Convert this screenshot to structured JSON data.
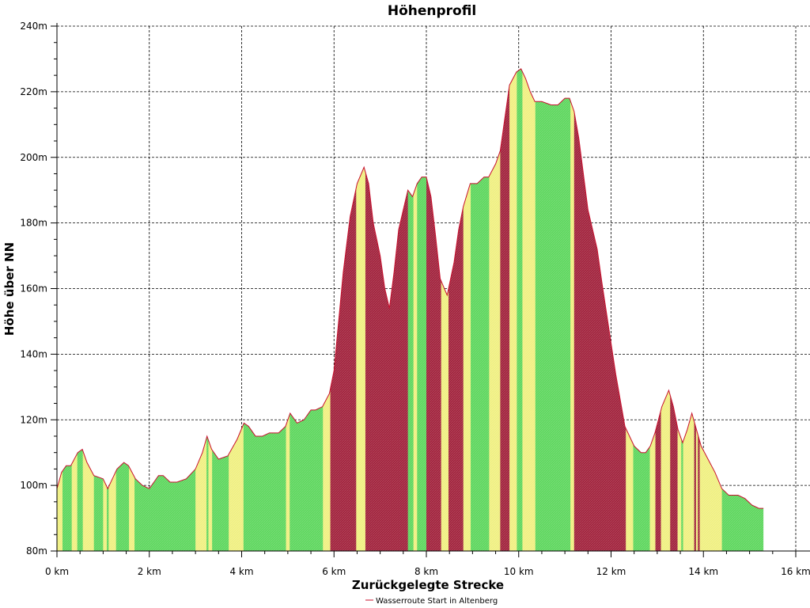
{
  "chart_data": {
    "type": "area",
    "title": "Höhenprofil",
    "xlabel": "Zurückgelegte Strecke",
    "ylabel": "Höhe über NN",
    "xlim": [
      0,
      16
    ],
    "ylim": [
      80,
      240
    ],
    "grid": true,
    "legend_position": "bottom-center",
    "x_ticks": [
      0,
      2,
      4,
      6,
      8,
      10,
      12,
      14,
      16
    ],
    "x_tick_labels": [
      "0 km",
      "2 km",
      "4 km",
      "6 km",
      "8 km",
      "10 km",
      "12 km",
      "14 km",
      "16 km"
    ],
    "y_ticks": [
      80,
      100,
      120,
      140,
      160,
      180,
      200,
      220,
      240
    ],
    "y_tick_labels": [
      "80m",
      "100m",
      "120m",
      "140m",
      "160m",
      "180m",
      "200m",
      "220m",
      "240m"
    ],
    "line_color": "#c8102e",
    "gradient_colors": {
      "flat": "#5cd65c",
      "moderate": "#f0f080",
      "steep": "#a0203a"
    },
    "series": [
      {
        "name": "Wasserroute Start in Altenberg",
        "x": [
          0.0,
          0.1,
          0.2,
          0.3,
          0.45,
          0.55,
          0.65,
          0.8,
          1.0,
          1.1,
          1.2,
          1.3,
          1.45,
          1.55,
          1.7,
          1.85,
          2.0,
          2.1,
          2.2,
          2.3,
          2.45,
          2.6,
          2.8,
          3.0,
          3.15,
          3.25,
          3.35,
          3.5,
          3.7,
          3.9,
          4.05,
          4.15,
          4.3,
          4.45,
          4.6,
          4.8,
          4.95,
          5.05,
          5.2,
          5.35,
          5.5,
          5.6,
          5.75,
          5.9,
          6.0,
          6.1,
          6.2,
          6.35,
          6.5,
          6.65,
          6.75,
          6.85,
          7.0,
          7.1,
          7.2,
          7.3,
          7.4,
          7.5,
          7.6,
          7.7,
          7.8,
          7.9,
          8.0,
          8.1,
          8.2,
          8.3,
          8.45,
          8.6,
          8.7,
          8.8,
          8.95,
          9.1,
          9.25,
          9.35,
          9.5,
          9.6,
          9.7,
          9.8,
          9.95,
          10.05,
          10.15,
          10.25,
          10.35,
          10.5,
          10.7,
          10.85,
          11.0,
          11.1,
          11.2,
          11.3,
          11.5,
          11.7,
          11.8,
          11.95,
          12.1,
          12.3,
          12.5,
          12.65,
          12.75,
          12.85,
          12.95,
          13.1,
          13.25,
          13.35,
          13.45,
          13.55,
          13.65,
          13.75,
          13.85,
          13.95,
          14.1,
          14.25,
          14.4,
          14.55,
          14.75,
          14.9,
          15.05,
          15.2,
          15.3
        ],
        "values": [
          99,
          104,
          106,
          106,
          110,
          111,
          107,
          103,
          102,
          99,
          102,
          105,
          107,
          106,
          102,
          100,
          99,
          101,
          103,
          103,
          101,
          101,
          102,
          105,
          110,
          115,
          111,
          108,
          109,
          114,
          119,
          118,
          115,
          115,
          116,
          116,
          118,
          122,
          119,
          120,
          123,
          123,
          124,
          128,
          135,
          150,
          165,
          182,
          192,
          197,
          192,
          180,
          170,
          160,
          154,
          165,
          178,
          184,
          190,
          188,
          192,
          194,
          194,
          188,
          176,
          163,
          158,
          168,
          178,
          185,
          192,
          192,
          194,
          194,
          198,
          202,
          212,
          222,
          226,
          227,
          224,
          220,
          217,
          217,
          216,
          216,
          218,
          218,
          214,
          206,
          184,
          172,
          162,
          148,
          134,
          118,
          112,
          110,
          110,
          112,
          116,
          124,
          129,
          124,
          117,
          113,
          117,
          122,
          117,
          112,
          108,
          104,
          99,
          97,
          97,
          96,
          94,
          93,
          93
        ]
      }
    ]
  }
}
